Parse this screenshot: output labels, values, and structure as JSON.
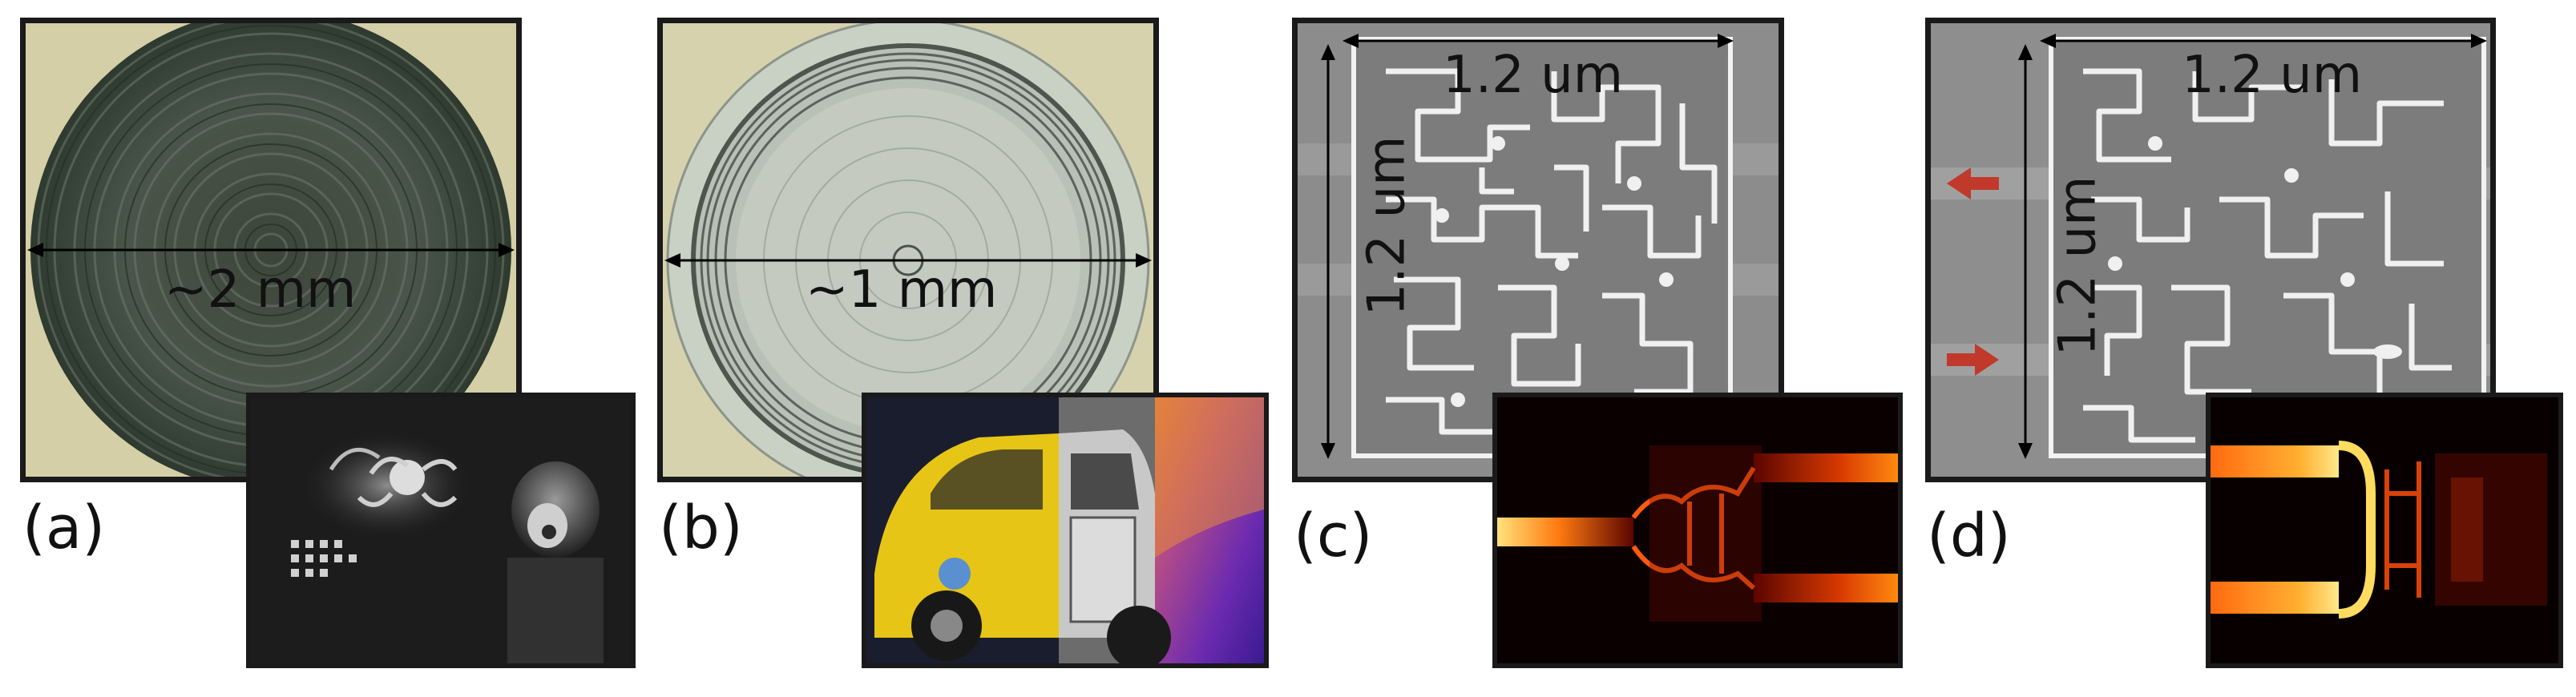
{
  "panels": [
    {
      "label": "(a)",
      "dimension": "~2 mm"
    },
    {
      "label": "(b)",
      "dimension": "~1 mm"
    },
    {
      "label": "(c)",
      "dimension_x": "1.2 um",
      "dimension_y": "1.2 um"
    },
    {
      "label": "(d)",
      "dimension_x": "1.2 um",
      "dimension_y": "1.2 um"
    }
  ],
  "colors": {
    "border": "#1a1a1a",
    "arrow_red": "#c0392b",
    "lens_dark": "#3c4a3c",
    "lens_bg": "#d8d3ab",
    "heat": "#ffcc33"
  },
  "icons": [
    "fresnel-lens-image",
    "thin-lens-image",
    "sem-device-image",
    "field-intensity-image",
    "octopus-scene-image",
    "car-scene-image"
  ]
}
